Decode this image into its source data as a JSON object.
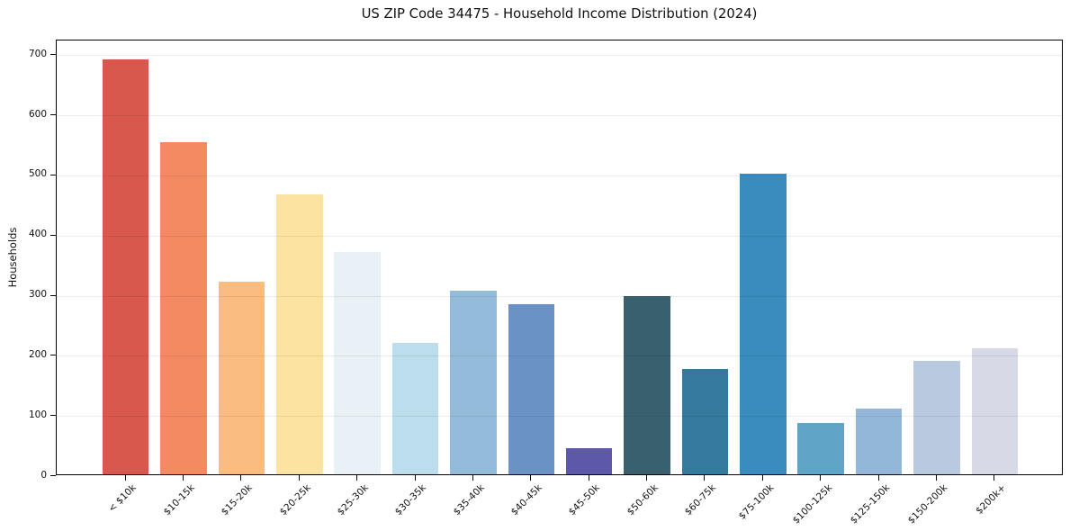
{
  "chart_data": {
    "type": "bar",
    "title": "US ZIP Code 34475 - Household Income Distribution (2024)",
    "xlabel": "",
    "ylabel": "Households",
    "categories": [
      "< $10k",
      "$10-15k",
      "$15-20k",
      "$20-25k",
      "$25-30k",
      "$30-35k",
      "$35-40k",
      "$40-45k",
      "$45-50k",
      "$50-60k",
      "$60-75k",
      "$75-100k",
      "$100-125k",
      "$125-150k",
      "$150-200k",
      "$200k+"
    ],
    "values": [
      690,
      552,
      321,
      466,
      370,
      218,
      305,
      283,
      44,
      296,
      175,
      500,
      85,
      110,
      188,
      209
    ],
    "bar_colors": [
      "#d9584d",
      "#f48a62",
      "#fabc7f",
      "#fde3a1",
      "#e8f2f6",
      "#bcdeec",
      "#92bcd9",
      "#6b92c5",
      "#5c59a9",
      "#38606f",
      "#36799e",
      "#3a8cbe",
      "#60a4c8",
      "#93b7d8",
      "#b9c9e0",
      "#d7d9e7"
    ],
    "ylim": [
      0,
      724.5
    ],
    "yticks": [
      0,
      100,
      200,
      300,
      400,
      500,
      600,
      700
    ],
    "grid": "horizontal-light",
    "x_tick_rotation": 45,
    "legend": "none",
    "colors": {
      "background": "#ffffff",
      "spine": "#000000",
      "grid": "#ededed",
      "text": "#111111"
    }
  }
}
